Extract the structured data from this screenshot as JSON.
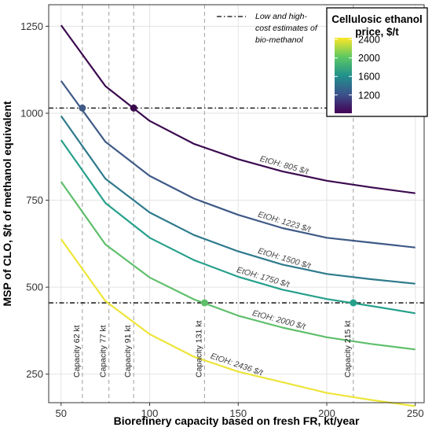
{
  "chart_data": {
    "type": "line",
    "xlabel": "Biorefinery capacity based on fresh FR, kt/year",
    "ylabel": "MSP of CLO, $/t of methanol equivalent",
    "xlim": [
      43,
      255
    ],
    "ylim": [
      168,
      1312
    ],
    "x_ticks": [
      50,
      100,
      150,
      200,
      250
    ],
    "y_ticks": [
      250,
      500,
      750,
      1000,
      1250
    ],
    "grid": true,
    "colors": {
      "805": "#3b0a4f",
      "1223": "#3f5a87",
      "1500": "#2e7a8c",
      "1750": "#26a08b",
      "2000": "#5fbf6b",
      "2436": "#ede53a"
    },
    "series": [
      {
        "name": "EtOH: 805 $/t",
        "price": 805,
        "x": [
          50,
          75,
          100,
          125,
          150,
          175,
          200,
          225,
          250
        ],
        "y": [
          1253,
          1078,
          978,
          912,
          868,
          833,
          806,
          787,
          770
        ]
      },
      {
        "name": "EtOH: 1223 $/t",
        "price": 1223,
        "x": [
          50,
          75,
          100,
          125,
          150,
          175,
          200,
          225,
          250
        ],
        "y": [
          1093,
          918,
          820,
          755,
          708,
          670,
          642,
          628,
          614
        ]
      },
      {
        "name": "EtOH: 1500 $/t",
        "price": 1500,
        "x": [
          50,
          75,
          100,
          125,
          150,
          175,
          200,
          225,
          250
        ],
        "y": [
          992,
          812,
          715,
          650,
          603,
          565,
          538,
          523,
          510
        ]
      },
      {
        "name": "EtOH: 1750 $/t",
        "price": 1750,
        "x": [
          50,
          75,
          100,
          125,
          150,
          175,
          200,
          225,
          250
        ],
        "y": [
          923,
          742,
          642,
          578,
          530,
          493,
          466,
          446,
          425
        ]
      },
      {
        "name": "EtOH: 2000 $/t",
        "price": 2000,
        "x": [
          50,
          75,
          100,
          125,
          150,
          175,
          200,
          225,
          250
        ],
        "y": [
          803,
          623,
          528,
          465,
          418,
          384,
          356,
          337,
          321
        ]
      },
      {
        "name": "EtOH: 2436 $/t",
        "price": 2436,
        "x": [
          50,
          75,
          100,
          125,
          150,
          175,
          200,
          225,
          250
        ],
        "y": [
          638,
          460,
          365,
          300,
          257,
          227,
          196,
          176,
          158
        ]
      }
    ],
    "estimate_lines": {
      "label": "Low and high-cost estimates of bio-methanol",
      "values": [
        1015,
        455
      ]
    },
    "capacity_lines": [
      {
        "x": 62,
        "label": "Capacity 62 kt"
      },
      {
        "x": 77,
        "label": "Capacity 77 kt"
      },
      {
        "x": 91,
        "label": "Capacity 91 kt"
      },
      {
        "x": 131,
        "label": "Capacity 131 kt"
      },
      {
        "x": 215,
        "label": "Capacity 215 kt"
      }
    ],
    "intersections": [
      {
        "x": 62,
        "y": 1015,
        "price": 1223
      },
      {
        "x": 91,
        "y": 1015,
        "price": 805
      },
      {
        "x": 131,
        "y": 455,
        "price": 2000
      },
      {
        "x": 215,
        "y": 455,
        "price": 1750
      }
    ],
    "legend": {
      "title_line1": "Cellulosic ethanol",
      "title_line2": "price, $/t",
      "ticks": [
        2400,
        2000,
        1600,
        1200
      ],
      "min": 805,
      "max": 2436,
      "placement": "top-right"
    }
  }
}
